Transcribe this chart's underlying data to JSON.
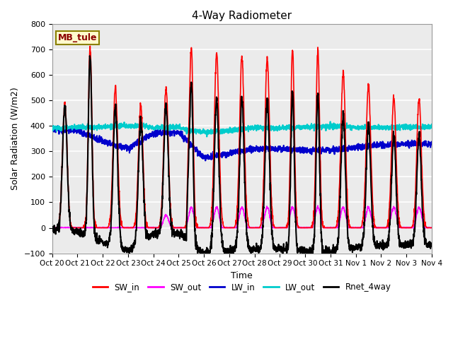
{
  "title": "4-Way Radiometer",
  "xlabel": "Time",
  "ylabel": "Solar Radiation (W/m2)",
  "ylim": [
    -100,
    800
  ],
  "xlim": [
    0,
    15
  ],
  "annotation_text": "MB_tule",
  "annotation_color": "#8B0000",
  "annotation_bg": "#FFFACD",
  "annotation_edge": "#8B8000",
  "bg_color": "#ebebeb",
  "xtick_labels": [
    "Oct 20",
    "Oct 21",
    "Oct 22",
    "Oct 23",
    "Oct 24",
    "Oct 25",
    "Oct 26",
    "Oct 27",
    "Oct 28",
    "Oct 29",
    "Oct 30",
    "Oct 31",
    "Nov 1",
    "Nov 2",
    "Nov 3",
    "Nov 4"
  ],
  "legend_entries": [
    "SW_in",
    "SW_out",
    "LW_in",
    "LW_out",
    "Rnet_4way"
  ],
  "legend_colors": [
    "#FF0000",
    "#FF00FF",
    "#0000CC",
    "#00CCCC",
    "#000000"
  ],
  "line_widths": [
    1.2,
    1.2,
    1.5,
    1.5,
    1.5
  ],
  "yticks": [
    -100,
    0,
    100,
    200,
    300,
    400,
    500,
    600,
    700,
    800
  ],
  "figsize": [
    6.4,
    4.8
  ],
  "dpi": 100
}
